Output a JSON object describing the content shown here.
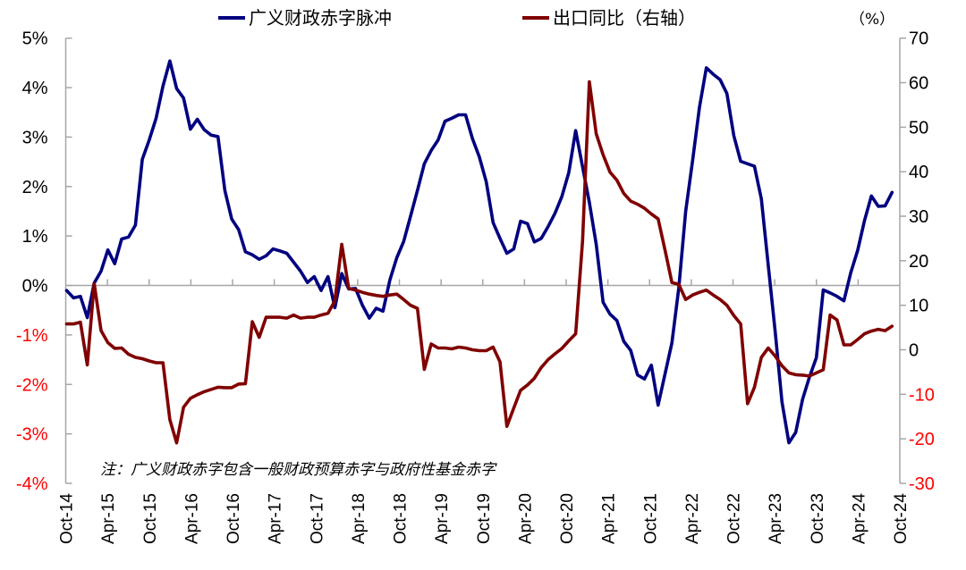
{
  "chart_data": {
    "type": "line",
    "legend": {
      "placement": "top",
      "unit_note": "（%）"
    },
    "note": "注：广义财政赤字包含一般财政预算赤字与政府性基金赤字",
    "grid": false,
    "x_tick_labels": [
      "Oct-14",
      "Apr-15",
      "Oct-15",
      "Apr-16",
      "Oct-16",
      "Apr-17",
      "Oct-17",
      "Apr-18",
      "Oct-18",
      "Apr-19",
      "Oct-19",
      "Apr-20",
      "Oct-20",
      "Apr-21",
      "Oct-21",
      "Apr-22",
      "Oct-22",
      "Apr-23",
      "Oct-23",
      "Apr-24",
      "Oct-24"
    ],
    "categories": [
      "Oct-14",
      "Nov-14",
      "Dec-14",
      "Jan-15",
      "Feb-15",
      "Mar-15",
      "Apr-15",
      "May-15",
      "Jun-15",
      "Jul-15",
      "Aug-15",
      "Sep-15",
      "Oct-15",
      "Nov-15",
      "Dec-15",
      "Jan-16",
      "Feb-16",
      "Mar-16",
      "Apr-16",
      "May-16",
      "Jun-16",
      "Jul-16",
      "Aug-16",
      "Sep-16",
      "Oct-16",
      "Nov-16",
      "Dec-16",
      "Jan-17",
      "Feb-17",
      "Mar-17",
      "Apr-17",
      "May-17",
      "Jun-17",
      "Jul-17",
      "Aug-17",
      "Sep-17",
      "Oct-17",
      "Nov-17",
      "Dec-17",
      "Jan-18",
      "Feb-18",
      "Mar-18",
      "Apr-18",
      "May-18",
      "Jun-18",
      "Jul-18",
      "Aug-18",
      "Sep-18",
      "Oct-18",
      "Nov-18",
      "Dec-18",
      "Jan-19",
      "Feb-19",
      "Mar-19",
      "Apr-19",
      "May-19",
      "Jun-19",
      "Jul-19",
      "Aug-19",
      "Sep-19",
      "Oct-19",
      "Nov-19",
      "Dec-19",
      "Jan-20",
      "Feb-20",
      "Mar-20",
      "Apr-20",
      "May-20",
      "Jun-20",
      "Jul-20",
      "Aug-20",
      "Sep-20",
      "Oct-20",
      "Nov-20",
      "Dec-20",
      "Jan-21",
      "Feb-21",
      "Mar-21",
      "Apr-21",
      "May-21",
      "Jun-21",
      "Jul-21",
      "Aug-21",
      "Sep-21",
      "Oct-21",
      "Nov-21",
      "Dec-21",
      "Jan-22",
      "Feb-22",
      "Mar-22",
      "Apr-22",
      "May-22",
      "Jun-22",
      "Jul-22",
      "Aug-22",
      "Sep-22",
      "Oct-22",
      "Nov-22",
      "Dec-22",
      "Jan-23",
      "Feb-23",
      "Mar-23",
      "Apr-23",
      "May-23",
      "Jun-23",
      "Jul-23",
      "Aug-23",
      "Sep-23",
      "Oct-23",
      "Nov-23",
      "Dec-23",
      "Jan-24",
      "Feb-24",
      "Mar-24",
      "Apr-24",
      "May-24",
      "Jun-24",
      "Jul-24",
      "Aug-24",
      "Sep-24",
      "Oct-24"
    ],
    "y_left": {
      "range": [
        -4,
        5
      ],
      "tick_labels": [
        "5%",
        "4%",
        "3%",
        "2%",
        "1%",
        "0%",
        "-1%",
        "-2%",
        "-3%",
        "-4%"
      ],
      "tick_values": [
        5,
        4,
        3,
        2,
        1,
        0,
        -1,
        -2,
        -3,
        -4
      ]
    },
    "y_right": {
      "range": [
        -30,
        70
      ],
      "tick_labels": [
        "70",
        "60",
        "50",
        "40",
        "30",
        "20",
        "10",
        "0",
        "-10",
        "-20",
        "-30"
      ],
      "tick_values": [
        70,
        60,
        50,
        40,
        30,
        20,
        10,
        0,
        -10,
        -20,
        -30
      ]
    },
    "negative_label_color": "#ff0000",
    "series": [
      {
        "name": "广义财政赤字脉冲",
        "axis": "left",
        "color": "#000080",
        "values": [
          -0.1,
          -0.25,
          -0.22,
          -0.65,
          0.05,
          0.29,
          0.72,
          0.44,
          0.94,
          0.98,
          1.22,
          2.55,
          2.94,
          3.38,
          4.03,
          4.54,
          3.98,
          3.79,
          3.16,
          3.36,
          3.15,
          3.04,
          3.01,
          1.92,
          1.34,
          1.13,
          0.68,
          0.62,
          0.53,
          0.6,
          0.74,
          0.7,
          0.65,
          0.47,
          0.29,
          0.06,
          0.18,
          -0.1,
          0.18,
          -0.45,
          0.24,
          -0.07,
          -0.06,
          -0.4,
          -0.66,
          -0.46,
          -0.52,
          0.11,
          0.56,
          0.89,
          1.4,
          1.92,
          2.46,
          2.73,
          2.94,
          3.32,
          3.38,
          3.45,
          3.45,
          2.97,
          2.6,
          2.1,
          1.27,
          0.95,
          0.65,
          0.74,
          1.3,
          1.25,
          0.88,
          0.95,
          1.19,
          1.46,
          1.8,
          2.28,
          3.13,
          2.4,
          1.68,
          0.83,
          -0.34,
          -0.58,
          -0.71,
          -1.13,
          -1.31,
          -1.81,
          -1.89,
          -1.61,
          -2.42,
          -1.79,
          -1.16,
          -0.05,
          1.5,
          2.52,
          3.6,
          4.4,
          4.27,
          4.16,
          3.88,
          3.03,
          2.51,
          2.46,
          2.41,
          1.75,
          0.41,
          -0.92,
          -2.36,
          -3.18,
          -2.97,
          -2.3,
          -1.85,
          -1.46,
          -0.09,
          -0.15,
          -0.22,
          -0.31,
          0.26,
          0.71,
          1.31,
          1.81,
          1.6,
          1.61,
          1.88
        ]
      },
      {
        "name": "出口同比（右轴）",
        "axis": "right",
        "color": "#800000",
        "values": [
          5.8,
          5.8,
          6.2,
          -3.4,
          14.9,
          4.3,
          1.6,
          0.3,
          0.4,
          -1.0,
          -1.7,
          -2.0,
          -2.5,
          -2.9,
          -2.9,
          -15.7,
          -20.9,
          -12.9,
          -10.9,
          -10.1,
          -9.4,
          -8.9,
          -8.4,
          -8.5,
          -8.5,
          -7.7,
          -7.6,
          6.3,
          2.8,
          7.3,
          7.3,
          7.3,
          7.1,
          7.8,
          7.1,
          7.3,
          7.3,
          7.8,
          8.2,
          11.0,
          23.7,
          13.8,
          13.4,
          12.9,
          12.5,
          12.2,
          12.0,
          12.3,
          12.5,
          11.3,
          10.0,
          9.3,
          -4.4,
          1.3,
          0.4,
          0.4,
          0.2,
          0.6,
          0.4,
          0.0,
          -0.2,
          -0.2,
          0.6,
          -2.7,
          -17.2,
          -13.1,
          -9.1,
          -7.9,
          -6.4,
          -4.0,
          -2.2,
          -0.9,
          0.3,
          2.0,
          3.6,
          24.4,
          60.2,
          48.5,
          43.8,
          39.9,
          38.1,
          35.1,
          33.4,
          32.7,
          31.8,
          30.5,
          29.4,
          22.4,
          15.1,
          14.7,
          11.3,
          12.3,
          12.9,
          13.4,
          12.3,
          11.3,
          10.0,
          7.7,
          5.8,
          -12.1,
          -8.4,
          -1.7,
          0.4,
          -1.4,
          -3.6,
          -5.2,
          -5.6,
          -5.7,
          -5.9,
          -5.2,
          -4.5,
          7.8,
          6.7,
          1.1,
          1.1,
          2.3,
          3.6,
          4.2,
          4.6,
          4.3,
          5.3
        ]
      }
    ]
  }
}
